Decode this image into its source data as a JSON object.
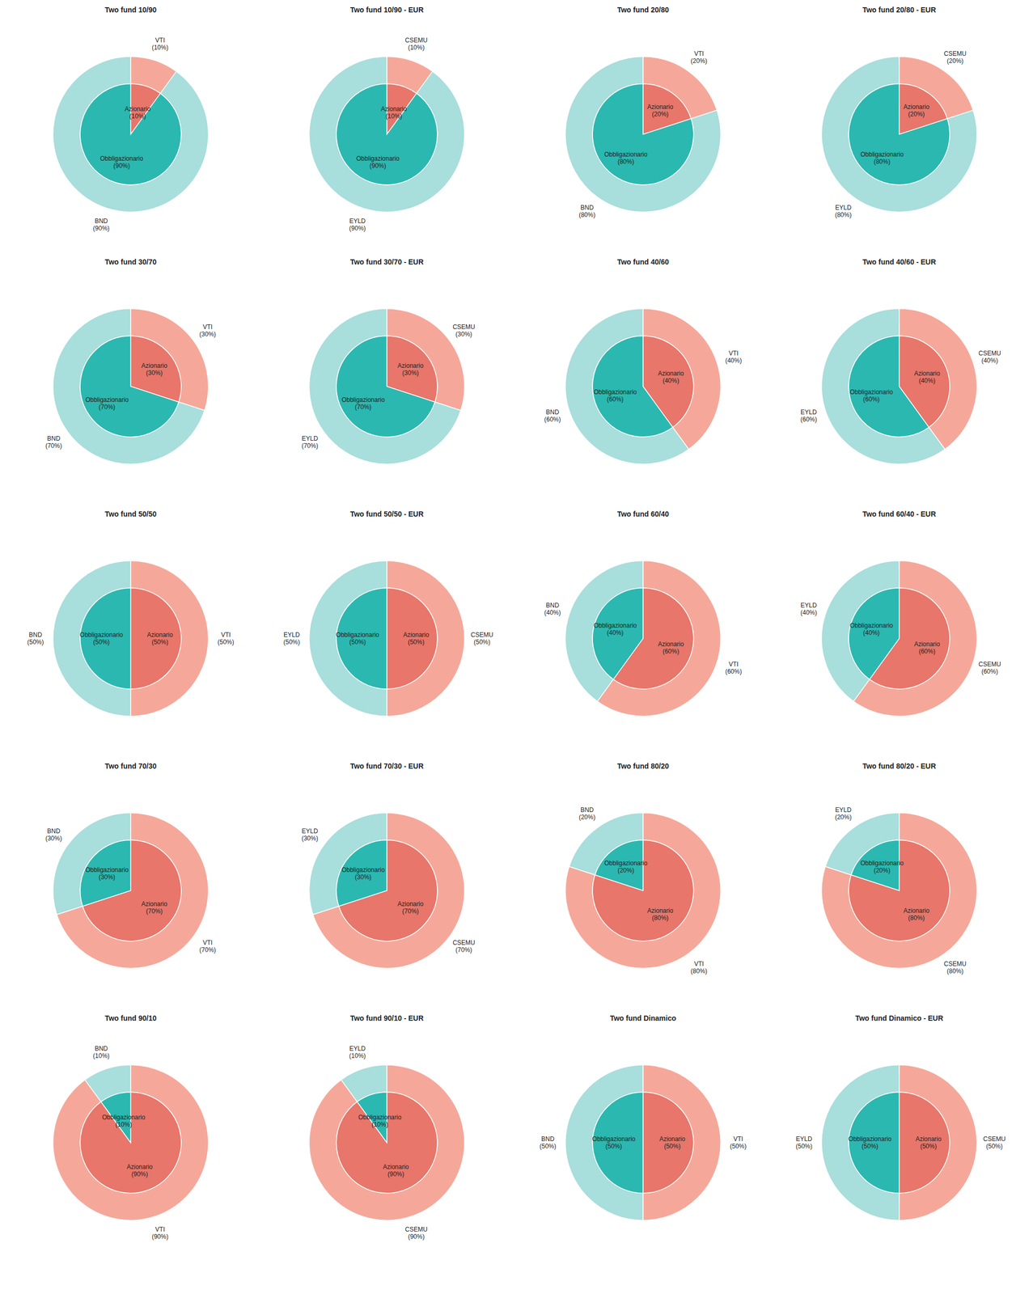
{
  "chart_data": [
    {
      "type": "pie",
      "title": "Two fund 10/90",
      "series": [
        {
          "type": "donut",
          "categories": [
            "VTI\n(10%)",
            "BND\n(90%)"
          ],
          "values": [
            10,
            90
          ],
          "colors": [
            "#F5A89A",
            "#A8DEDC"
          ]
        },
        {
          "type": "pie",
          "categories": [
            "Azionario\n(10%)",
            "Obbligazionario\n(90%)"
          ],
          "values": [
            10,
            90
          ],
          "colors": [
            "#E8766A",
            "#2BB8B0"
          ]
        }
      ]
    },
    {
      "type": "pie",
      "title": "Two fund 10/90 - EUR",
      "series": [
        {
          "type": "donut",
          "categories": [
            "CSEMU\n(10%)",
            "EYLD\n(90%)"
          ],
          "values": [
            10,
            90
          ],
          "colors": [
            "#F5A89A",
            "#A8DEDC"
          ]
        },
        {
          "type": "pie",
          "categories": [
            "Azionario\n(10%)",
            "Obbligazionario\n(90%)"
          ],
          "values": [
            10,
            90
          ],
          "colors": [
            "#E8766A",
            "#2BB8B0"
          ]
        }
      ]
    },
    {
      "type": "pie",
      "title": "Two fund 20/80",
      "series": [
        {
          "type": "donut",
          "categories": [
            "VTI\n(20%)",
            "BND\n(80%)"
          ],
          "values": [
            20,
            80
          ],
          "colors": [
            "#F5A89A",
            "#A8DEDC"
          ]
        },
        {
          "type": "pie",
          "categories": [
            "Azionario\n(20%)",
            "Obbligazionario\n(80%)"
          ],
          "values": [
            20,
            80
          ],
          "colors": [
            "#E8766A",
            "#2BB8B0"
          ]
        }
      ]
    },
    {
      "type": "pie",
      "title": "Two fund 20/80 - EUR",
      "series": [
        {
          "type": "donut",
          "categories": [
            "CSEMU\n(20%)",
            "EYLD\n(80%)"
          ],
          "values": [
            20,
            80
          ],
          "colors": [
            "#F5A89A",
            "#A8DEDC"
          ]
        },
        {
          "type": "pie",
          "categories": [
            "Azionario\n(20%)",
            "Obbligazionario\n(80%)"
          ],
          "values": [
            20,
            80
          ],
          "colors": [
            "#E8766A",
            "#2BB8B0"
          ]
        }
      ]
    },
    {
      "type": "pie",
      "title": "Two fund 30/70",
      "series": [
        {
          "type": "donut",
          "categories": [
            "VTI\n(30%)",
            "BND\n(70%)"
          ],
          "values": [
            30,
            70
          ],
          "colors": [
            "#F5A89A",
            "#A8DEDC"
          ]
        },
        {
          "type": "pie",
          "categories": [
            "Azionario\n(30%)",
            "Obbligazionario\n(70%)"
          ],
          "values": [
            30,
            70
          ],
          "colors": [
            "#E8766A",
            "#2BB8B0"
          ]
        }
      ]
    },
    {
      "type": "pie",
      "title": "Two fund 30/70 - EUR",
      "series": [
        {
          "type": "donut",
          "categories": [
            "CSEMU\n(30%)",
            "EYLD\n(70%)"
          ],
          "values": [
            30,
            70
          ],
          "colors": [
            "#F5A89A",
            "#A8DEDC"
          ]
        },
        {
          "type": "pie",
          "categories": [
            "Azionario\n(30%)",
            "Obbligazionario\n(70%)"
          ],
          "values": [
            30,
            70
          ],
          "colors": [
            "#E8766A",
            "#2BB8B0"
          ]
        }
      ]
    },
    {
      "type": "pie",
      "title": "Two fund 40/60",
      "series": [
        {
          "type": "donut",
          "categories": [
            "VTI\n(40%)",
            "BND\n(60%)"
          ],
          "values": [
            40,
            60
          ],
          "colors": [
            "#F5A89A",
            "#A8DEDC"
          ]
        },
        {
          "type": "pie",
          "categories": [
            "Azionario\n(40%)",
            "Obbligazionario\n(60%)"
          ],
          "values": [
            40,
            60
          ],
          "colors": [
            "#E8766A",
            "#2BB8B0"
          ]
        }
      ]
    },
    {
      "type": "pie",
      "title": "Two fund 40/60 - EUR",
      "series": [
        {
          "type": "donut",
          "categories": [
            "CSEMU\n(40%)",
            "EYLD\n(60%)"
          ],
          "values": [
            40,
            60
          ],
          "colors": [
            "#F5A89A",
            "#A8DEDC"
          ]
        },
        {
          "type": "pie",
          "categories": [
            "Azionario\n(40%)",
            "Obbligazionario\n(60%)"
          ],
          "values": [
            40,
            60
          ],
          "colors": [
            "#E8766A",
            "#2BB8B0"
          ]
        }
      ]
    },
    {
      "type": "pie",
      "title": "Two fund 50/50",
      "series": [
        {
          "type": "donut",
          "categories": [
            "VTI\n(50%)",
            "BND\n(50%)"
          ],
          "values": [
            50,
            50
          ],
          "colors": [
            "#F5A89A",
            "#A8DEDC"
          ]
        },
        {
          "type": "pie",
          "categories": [
            "Azionario\n(50%)",
            "Obbligazionario\n(50%)"
          ],
          "values": [
            50,
            50
          ],
          "colors": [
            "#E8766A",
            "#2BB8B0"
          ]
        }
      ]
    },
    {
      "type": "pie",
      "title": "Two fund 50/50 - EUR",
      "series": [
        {
          "type": "donut",
          "categories": [
            "CSEMU\n(50%)",
            "EYLD\n(50%)"
          ],
          "values": [
            50,
            50
          ],
          "colors": [
            "#F5A89A",
            "#A8DEDC"
          ]
        },
        {
          "type": "pie",
          "categories": [
            "Azionario\n(50%)",
            "Obbligazionario\n(50%)"
          ],
          "values": [
            50,
            50
          ],
          "colors": [
            "#E8766A",
            "#2BB8B0"
          ]
        }
      ]
    },
    {
      "type": "pie",
      "title": "Two fund 60/40",
      "series": [
        {
          "type": "donut",
          "categories": [
            "VTI\n(60%)",
            "BND\n(40%)"
          ],
          "values": [
            60,
            40
          ],
          "colors": [
            "#F5A89A",
            "#A8DEDC"
          ]
        },
        {
          "type": "pie",
          "categories": [
            "Azionario\n(60%)",
            "Obbligazionario\n(40%)"
          ],
          "values": [
            60,
            40
          ],
          "colors": [
            "#E8766A",
            "#2BB8B0"
          ]
        }
      ]
    },
    {
      "type": "pie",
      "title": "Two fund 60/40 - EUR",
      "series": [
        {
          "type": "donut",
          "categories": [
            "CSEMU\n(60%)",
            "EYLD\n(40%)"
          ],
          "values": [
            60,
            40
          ],
          "colors": [
            "#F5A89A",
            "#A8DEDC"
          ]
        },
        {
          "type": "pie",
          "categories": [
            "Azionario\n(60%)",
            "Obbligazionario\n(40%)"
          ],
          "values": [
            60,
            40
          ],
          "colors": [
            "#E8766A",
            "#2BB8B0"
          ]
        }
      ]
    },
    {
      "type": "pie",
      "title": "Two fund 70/30",
      "series": [
        {
          "type": "donut",
          "categories": [
            "VTI\n(70%)",
            "BND\n(30%)"
          ],
          "values": [
            70,
            30
          ],
          "colors": [
            "#F5A89A",
            "#A8DEDC"
          ]
        },
        {
          "type": "pie",
          "categories": [
            "Azionario\n(70%)",
            "Obbligazionario\n(30%)"
          ],
          "values": [
            70,
            30
          ],
          "colors": [
            "#E8766A",
            "#2BB8B0"
          ]
        }
      ]
    },
    {
      "type": "pie",
      "title": "Two fund 70/30 - EUR",
      "series": [
        {
          "type": "donut",
          "categories": [
            "CSEMU\n(70%)",
            "EYLD\n(30%)"
          ],
          "values": [
            70,
            30
          ],
          "colors": [
            "#F5A89A",
            "#A8DEDC"
          ]
        },
        {
          "type": "pie",
          "categories": [
            "Azionario\n(70%)",
            "Obbligazionario\n(30%)"
          ],
          "values": [
            70,
            30
          ],
          "colors": [
            "#E8766A",
            "#2BB8B0"
          ]
        }
      ]
    },
    {
      "type": "pie",
      "title": "Two fund 80/20",
      "series": [
        {
          "type": "donut",
          "categories": [
            "VTI\n(80%)",
            "BND\n(20%)"
          ],
          "values": [
            80,
            20
          ],
          "colors": [
            "#F5A89A",
            "#A8DEDC"
          ]
        },
        {
          "type": "pie",
          "categories": [
            "Azionario\n(80%)",
            "Obbligazionario\n(20%)"
          ],
          "values": [
            80,
            20
          ],
          "colors": [
            "#E8766A",
            "#2BB8B0"
          ]
        }
      ]
    },
    {
      "type": "pie",
      "title": "Two fund 80/20 - EUR",
      "series": [
        {
          "type": "donut",
          "categories": [
            "CSEMU\n(80%)",
            "EYLD\n(20%)"
          ],
          "values": [
            80,
            20
          ],
          "colors": [
            "#F5A89A",
            "#A8DEDC"
          ]
        },
        {
          "type": "pie",
          "categories": [
            "Azionario\n(80%)",
            "Obbligazionario\n(20%)"
          ],
          "values": [
            80,
            20
          ],
          "colors": [
            "#E8766A",
            "#2BB8B0"
          ]
        }
      ]
    },
    {
      "type": "pie",
      "title": "Two fund 90/10",
      "series": [
        {
          "type": "donut",
          "categories": [
            "VTI\n(90%)",
            "BND\n(10%)"
          ],
          "values": [
            90,
            10
          ],
          "colors": [
            "#F5A89A",
            "#A8DEDC"
          ]
        },
        {
          "type": "pie",
          "categories": [
            "Azionario\n(90%)",
            "Obbligazionario\n(10%)"
          ],
          "values": [
            90,
            10
          ],
          "colors": [
            "#E8766A",
            "#2BB8B0"
          ]
        }
      ]
    },
    {
      "type": "pie",
      "title": "Two fund 90/10 - EUR",
      "series": [
        {
          "type": "donut",
          "categories": [
            "CSEMU\n(90%)",
            "EYLD\n(10%)"
          ],
          "values": [
            90,
            10
          ],
          "colors": [
            "#F5A89A",
            "#A8DEDC"
          ]
        },
        {
          "type": "pie",
          "categories": [
            "Azionario\n(90%)",
            "Obbligazionario\n(10%)"
          ],
          "values": [
            90,
            10
          ],
          "colors": [
            "#E8766A",
            "#2BB8B0"
          ]
        }
      ]
    },
    {
      "type": "pie",
      "title": "Two fund Dinamico",
      "series": [
        {
          "type": "donut",
          "categories": [
            "VTI\n(50%)",
            "BND\n(50%)"
          ],
          "values": [
            50,
            50
          ],
          "colors": [
            "#F5A89A",
            "#A8DEDC"
          ]
        },
        {
          "type": "pie",
          "categories": [
            "Azionario\n(50%)",
            "Obbligazionario\n(50%)"
          ],
          "values": [
            50,
            50
          ],
          "colors": [
            "#E8766A",
            "#2BB8B0"
          ]
        }
      ]
    },
    {
      "type": "pie",
      "title": "Two fund Dinamico - EUR",
      "series": [
        {
          "type": "donut",
          "categories": [
            "CSEMU\n(50%)",
            "EYLD\n(50%)"
          ],
          "values": [
            50,
            50
          ],
          "colors": [
            "#F5A89A",
            "#A8DEDC"
          ]
        },
        {
          "type": "pie",
          "categories": [
            "Azionario\n(50%)",
            "Obbligazionario\n(50%)"
          ],
          "values": [
            50,
            50
          ],
          "colors": [
            "#E8766A",
            "#2BB8B0"
          ]
        }
      ]
    }
  ]
}
